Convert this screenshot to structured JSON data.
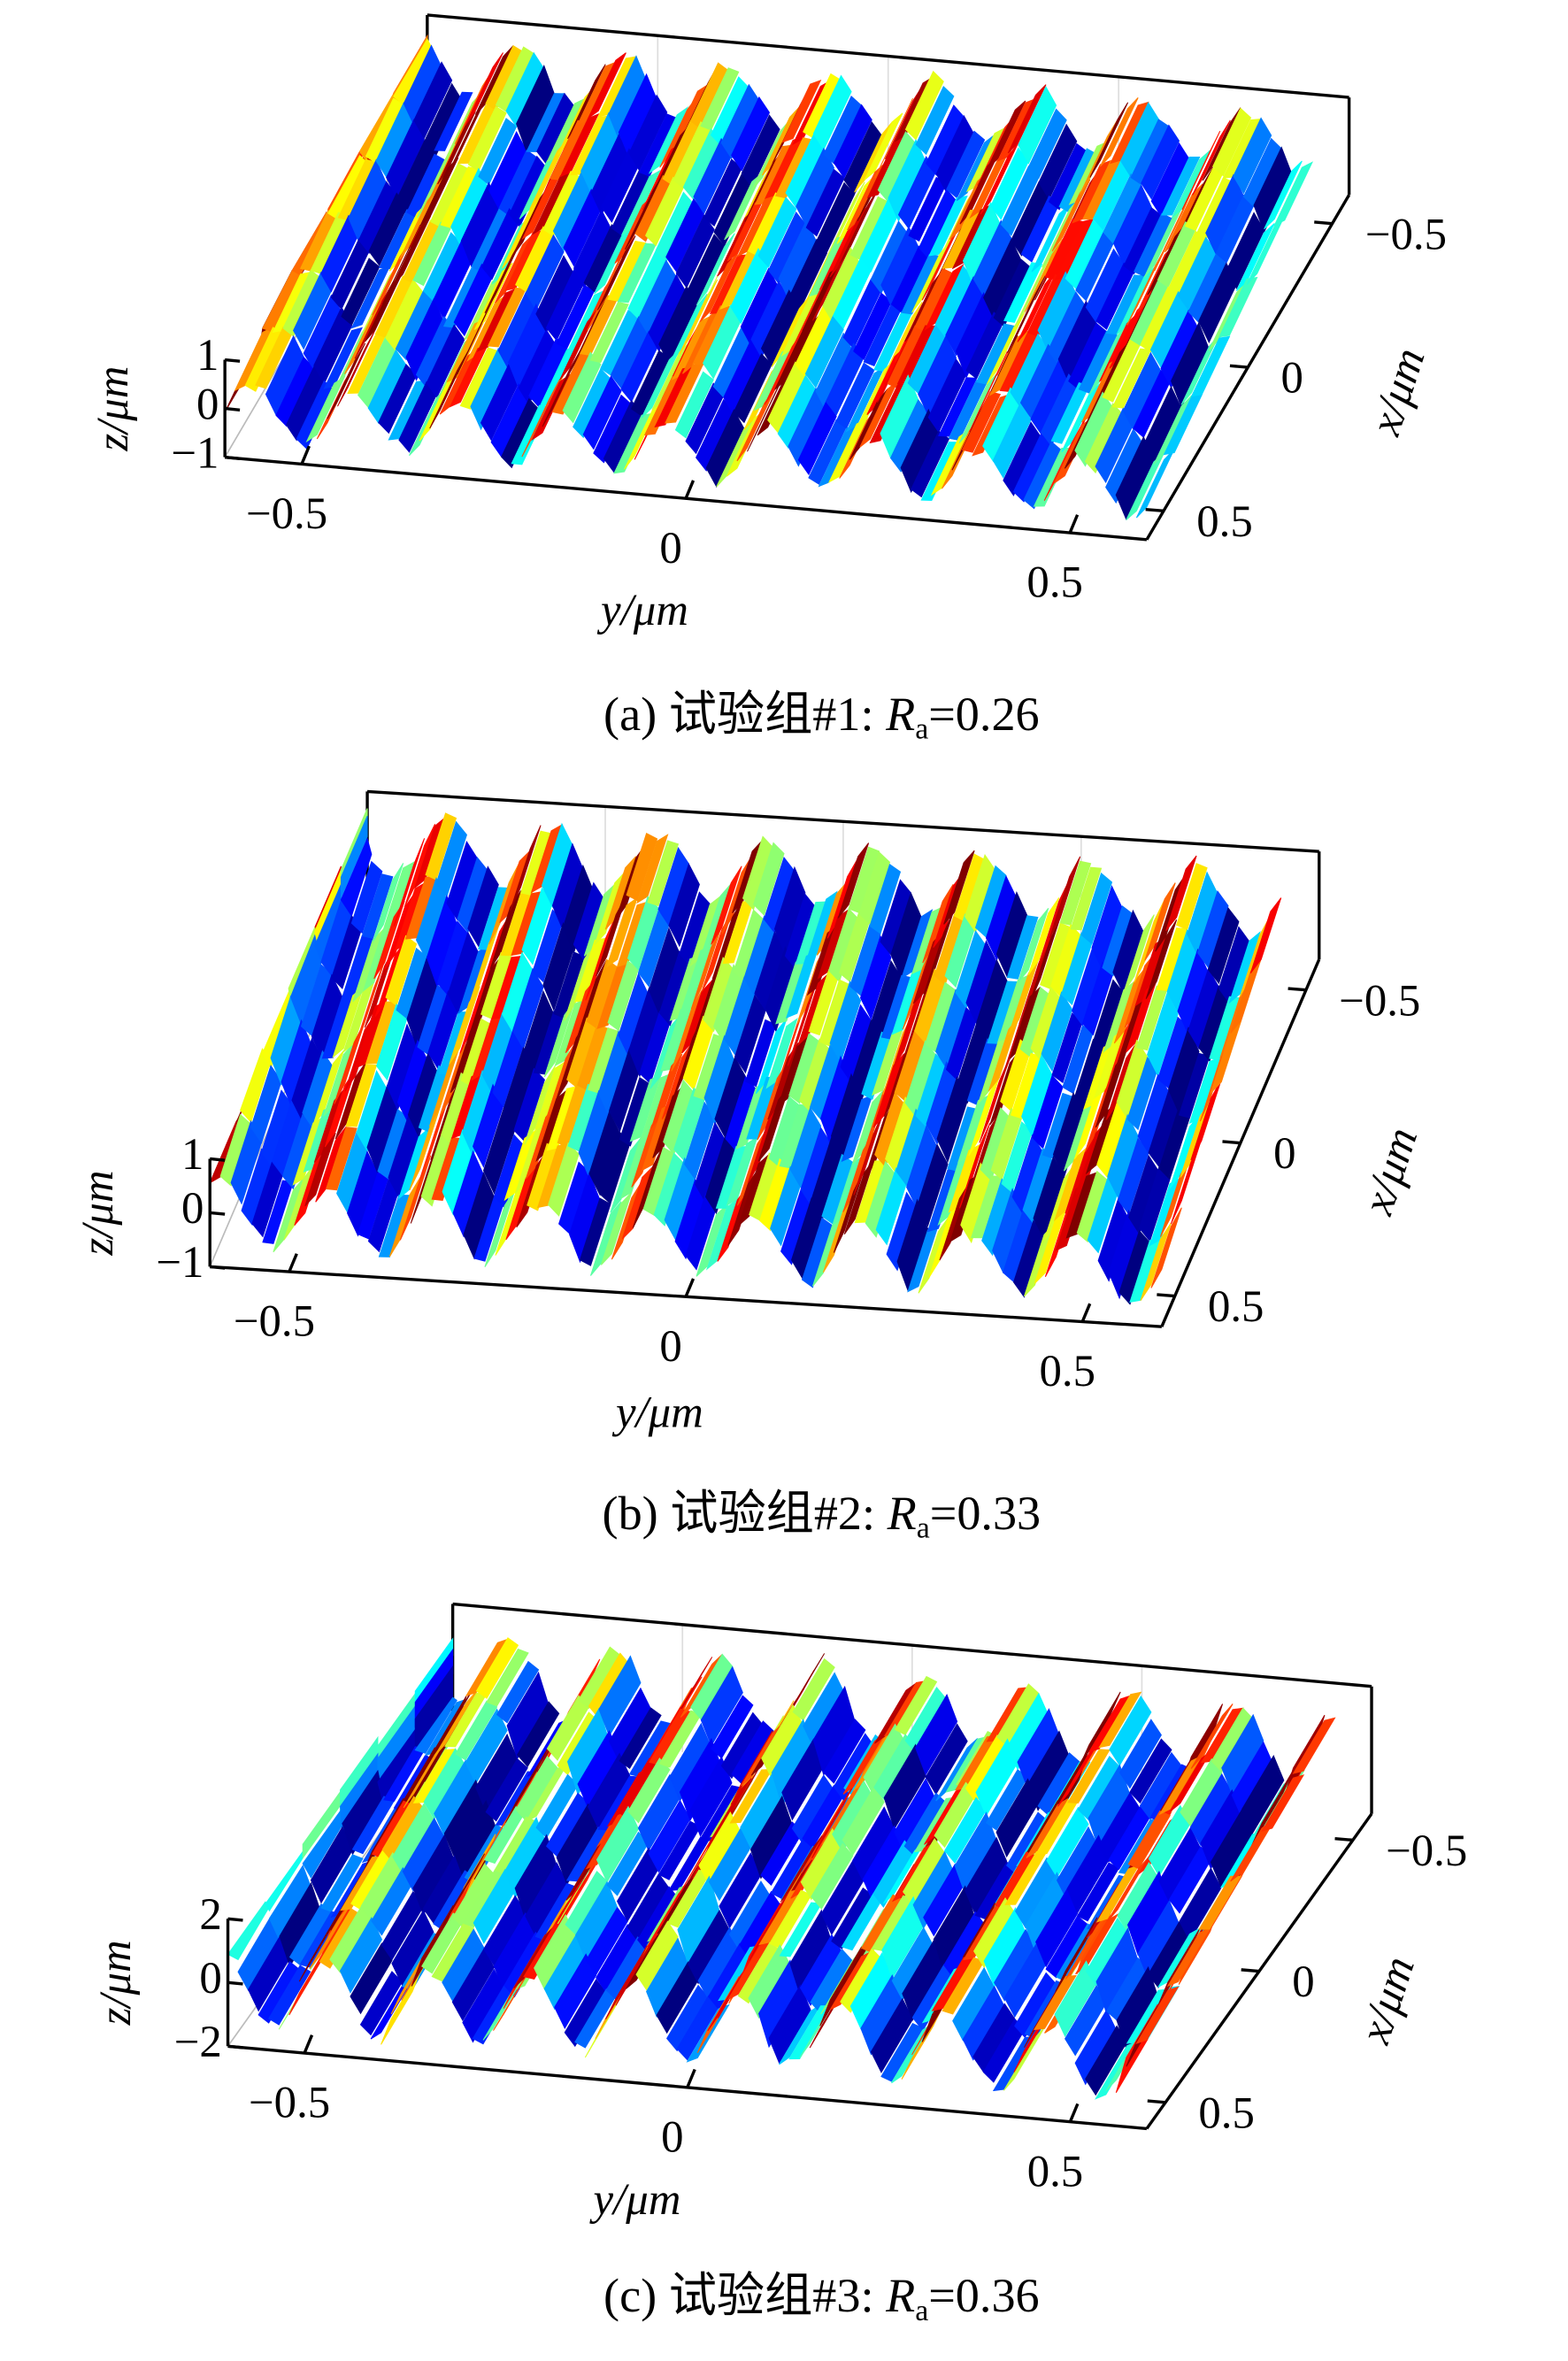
{
  "panels": [
    {
      "zlabel": "z/μm",
      "ylabel": "y/μm",
      "xlabel": "x/μm",
      "zlim": [
        -1,
        1
      ],
      "zticks": [
        1,
        0,
        {
          "value": -1,
          "label": "−1"
        }
      ],
      "ylim": [
        -0.6,
        0.6
      ],
      "yticks": [
        {
          "value": -0.5,
          "label": "−0.5"
        },
        0,
        0.5
      ],
      "xlim": [
        0.6,
        -0.6
      ],
      "xticks": [
        {
          "value": -0.5,
          "label": "−0.5"
        },
        0,
        0.5
      ],
      "caption": {
        "label": "(a) 试验组#1: ",
        "symbol": "R",
        "subscript": "a",
        "value_text": "=0.26"
      }
    },
    {
      "zlabel": "z/μm",
      "ylabel": "y/μm",
      "xlabel": "x/μm",
      "zlim": [
        -1,
        1
      ],
      "zticks": [
        1,
        0,
        {
          "value": -1,
          "label": "−1"
        }
      ],
      "ylim": [
        -0.6,
        0.6
      ],
      "yticks": [
        {
          "value": -0.5,
          "label": "−0.5"
        },
        0,
        0.5
      ],
      "xlim": [
        0.6,
        -0.6
      ],
      "xticks": [
        {
          "value": -0.5,
          "label": "−0.5"
        },
        0,
        0.5
      ],
      "caption": {
        "label": "(b) 试验组#2: ",
        "symbol": "R",
        "subscript": "a",
        "value_text": "=0.33"
      }
    },
    {
      "zlabel": "z/μm",
      "ylabel": "y/μm",
      "xlabel": "x/μm",
      "zlim": [
        -2,
        2
      ],
      "zticks": [
        2,
        0,
        {
          "value": -2,
          "label": "−2"
        }
      ],
      "ylim": [
        -0.6,
        0.6
      ],
      "yticks": [
        {
          "value": -0.5,
          "label": "−0.5"
        },
        0,
        0.5
      ],
      "xlim": [
        0.6,
        -0.6
      ],
      "xticks": [
        {
          "value": -0.5,
          "label": "−0.5"
        },
        0,
        0.5
      ],
      "caption": {
        "label": "(c) 试验组#3: ",
        "symbol": "R",
        "subscript": "a",
        "value_text": "=0.36"
      }
    }
  ]
}
